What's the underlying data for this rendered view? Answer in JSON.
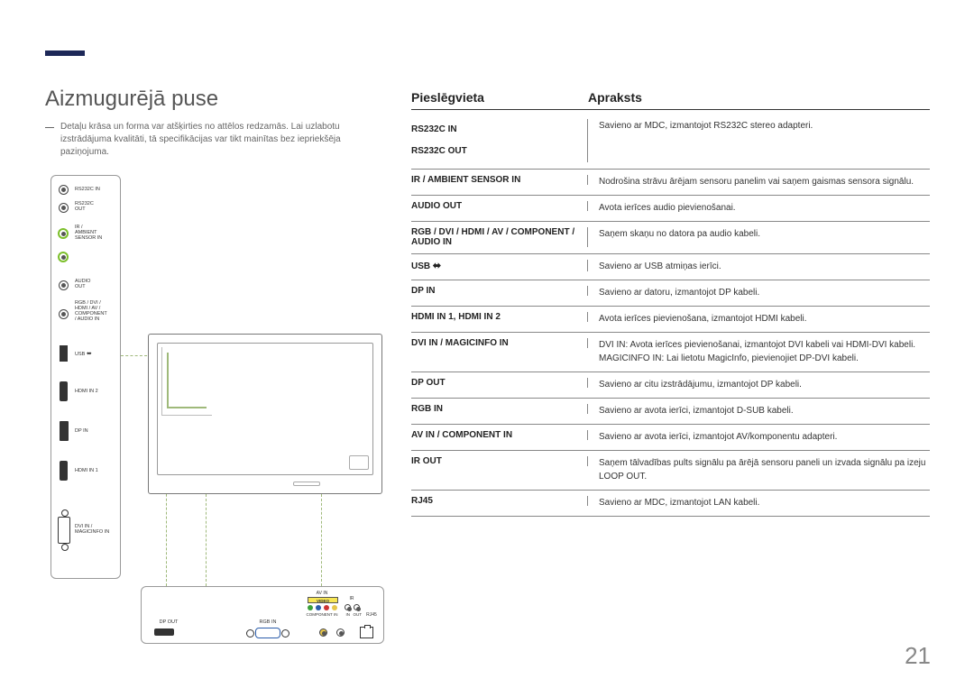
{
  "page_number": "21",
  "section_title": "Aizmugurējā puse",
  "note": "Detaļu krāsa un forma var atšķirties no attēlos redzamās. Lai uzlabotu izstrādājuma kvalitāti, tā specifikācijas var tikt mainītas bez iepriekšēja paziņojuma.",
  "headers": {
    "port": "Pieslēgvieta",
    "desc": "Apraksts"
  },
  "panel_labels": {
    "rs232c_in": "RS232C IN",
    "rs232c_out": "RS232C\nOUT",
    "ir_ambient": "IR /\nAMBIENT\nSENSOR IN",
    "audio_out": "AUDIO\nOUT",
    "rgb_combo": "RGB / DVI /\nHDMI / AV /\nCOMPONENT\n/ AUDIO IN",
    "usb": "USB",
    "hdmi2": "HDMI IN 2",
    "dpin": "DP IN",
    "hdmi1": "HDMI IN 1",
    "dvi": "DVI IN /\nMAGICINFO IN"
  },
  "bottom_labels": {
    "dpout": "DP OUT",
    "rgbin": "RGB IN",
    "avin": "AV IN",
    "video": "VIDEO",
    "component": "COMPONENT IN",
    "ir": "IR",
    "in": "IN",
    "out": "OUT",
    "rj45": "RJ45"
  },
  "rows": [
    {
      "port": "RS232C IN\nRS232C OUT",
      "desc": "Savieno ar MDC, izmantojot RS232C stereo adapteri.",
      "double": true
    },
    {
      "port": "IR / AMBIENT SENSOR IN",
      "desc": "Nodrošina strāvu ārējam sensoru panelim vai saņem gaismas sensora signālu."
    },
    {
      "port": "AUDIO OUT",
      "desc": "Avota ierīces audio pievienošanai."
    },
    {
      "port": "RGB / DVI / HDMI / AV / COMPONENT / AUDIO IN",
      "desc": "Saņem skaņu no datora pa audio kabeli."
    },
    {
      "port": "USB ⟵",
      "desc": "Savieno ar USB atmiņas ierīci.",
      "usb": true
    },
    {
      "port": "DP IN",
      "desc": "Savieno ar datoru, izmantojot DP kabeli."
    },
    {
      "port": "HDMI IN 1, HDMI IN 2",
      "desc": "Avota ierīces pievienošana, izmantojot HDMI kabeli."
    },
    {
      "port": "DVI IN / MAGICINFO IN",
      "desc": "DVI IN: Avota ierīces pievienošanai, izmantojot DVI kabeli vai HDMI-DVI kabeli.\nMAGICINFO IN: Lai lietotu MagicInfo, pievienojiet DP-DVI kabeli."
    },
    {
      "port": "DP OUT",
      "desc": "Savieno ar citu izstrādājumu, izmantojot DP kabeli."
    },
    {
      "port": "RGB IN",
      "desc": "Savieno ar avota ierīci, izmantojot D-SUB kabeli."
    },
    {
      "port": "AV IN / COMPONENT IN",
      "desc": "Savieno ar avota ierīci, izmantojot AV/komponentu adapteri."
    },
    {
      "port": "IR OUT",
      "desc": "Saņem tālvadības pults signālu pa ārējā sensoru paneli un izvada signālu pa izeju LOOP OUT."
    },
    {
      "port": "RJ45",
      "desc": "Savieno ar MDC, izmantojot LAN kabeli."
    }
  ],
  "colors": {
    "accent": "#1d2858",
    "green": "#9fb97a",
    "limegreen": "#7cbf2a",
    "vga_blue": "#2a5caa"
  }
}
